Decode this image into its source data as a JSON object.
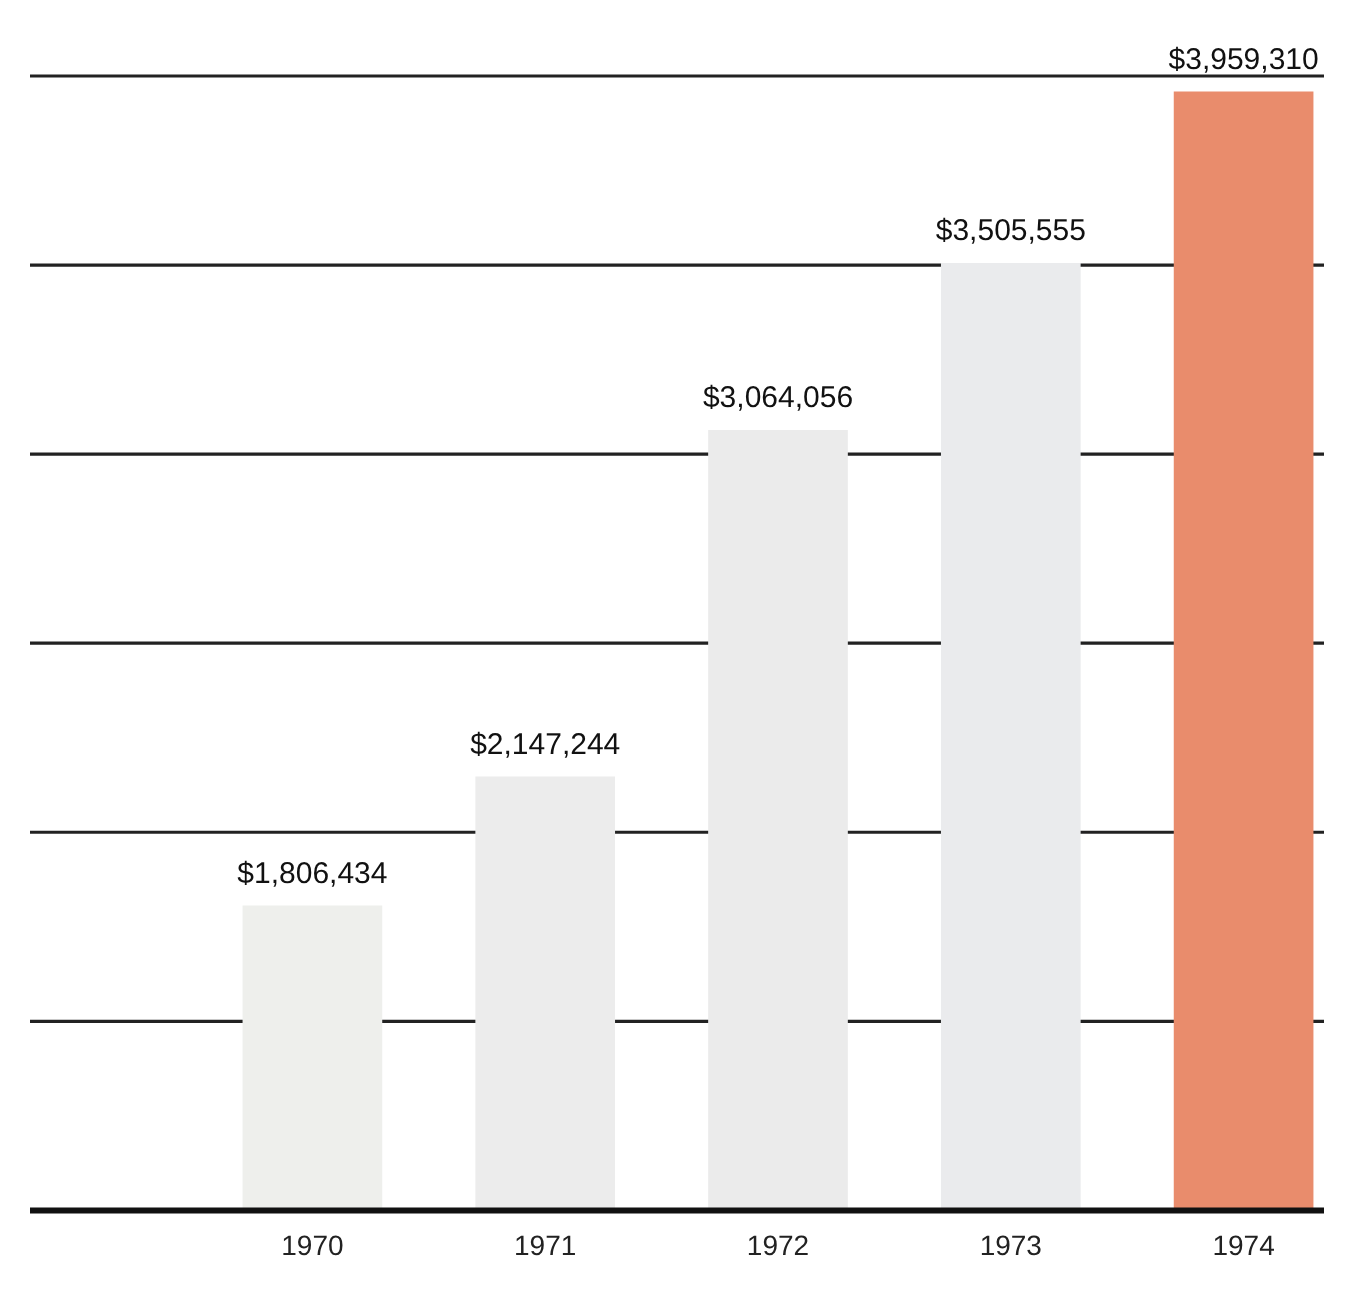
{
  "chart_data": {
    "type": "bar",
    "categories": [
      "1970",
      "1971",
      "1972",
      "1973",
      "1974"
    ],
    "values": [
      1806434,
      2147244,
      3064056,
      3505555,
      3959310
    ],
    "value_labels": [
      "$1,806,434",
      "$2,147,244",
      "$3,064,056",
      "$3,505,555",
      "$3,959,310"
    ],
    "colors": [
      "#eeefec",
      "#ececec",
      "#ebebeb",
      "#eaebed",
      "#e98c6c"
    ],
    "ylim": [
      1000000,
      4000000
    ],
    "yticks": [
      {
        "value": 1500000,
        "label": null
      },
      {
        "value": 2000000,
        "label": null
      },
      {
        "value": 2500000,
        "label": null
      },
      {
        "value": 3000000,
        "label": null
      },
      {
        "value": 3500000,
        "label": null
      },
      {
        "value": 4000000,
        "label": null
      }
    ],
    "grid": "y",
    "tick_labels": "x",
    "legend": false
  }
}
